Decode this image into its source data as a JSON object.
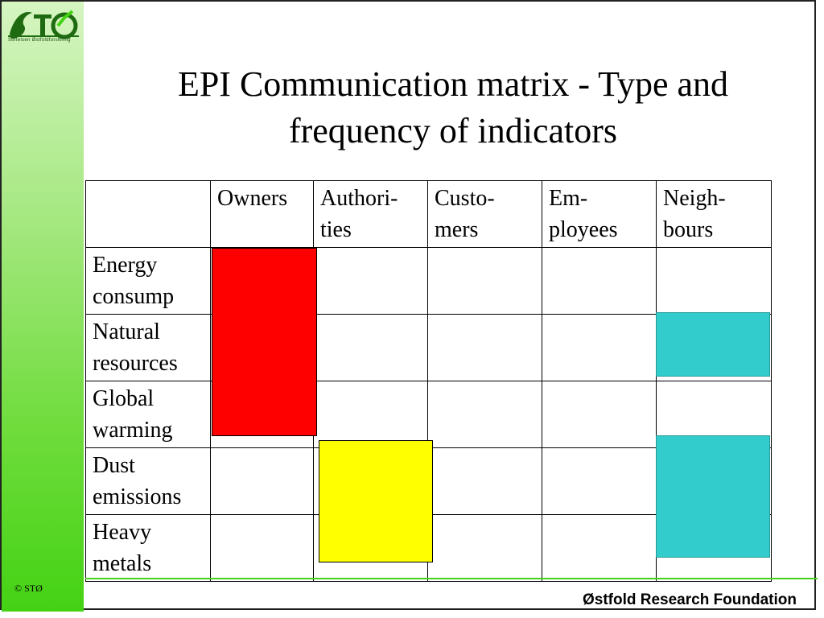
{
  "sidebar": {
    "logo_text": "STØ",
    "logo_caption": "Stiftelsen Østfoldforskning",
    "copyright": "© STØ",
    "colors": {
      "gradient_top": "#d6f5c2",
      "gradient_bottom": "#44d214"
    }
  },
  "slide": {
    "title_line1": "EPI Communication matrix - Type and",
    "title_line2": "frequency of indicators"
  },
  "matrix": {
    "columns": [
      {
        "line1": "",
        "line2": ""
      },
      {
        "line1": "Owners",
        "line2": ""
      },
      {
        "line1": "Authori-",
        "line2": "ties"
      },
      {
        "line1": "Custo-",
        "line2": "mers"
      },
      {
        "line1": "Em-",
        "line2": "ployees"
      },
      {
        "line1": "Neigh-",
        "line2": "bours"
      }
    ],
    "rows": [
      {
        "line1": "Energy",
        "line2": "consump"
      },
      {
        "line1": "Natural",
        "line2": "resources"
      },
      {
        "line1": "Global",
        "line2": "warming"
      },
      {
        "line1": "Dust",
        "line2": "emissions"
      },
      {
        "line1": "Heavy",
        "line2": "metals"
      }
    ],
    "highlight_colors": {
      "owners": "#ff0000",
      "authorities": "#ffff00",
      "neighbours": "#33cccc"
    }
  },
  "footer": {
    "organization": "Østfold Research Foundation"
  }
}
